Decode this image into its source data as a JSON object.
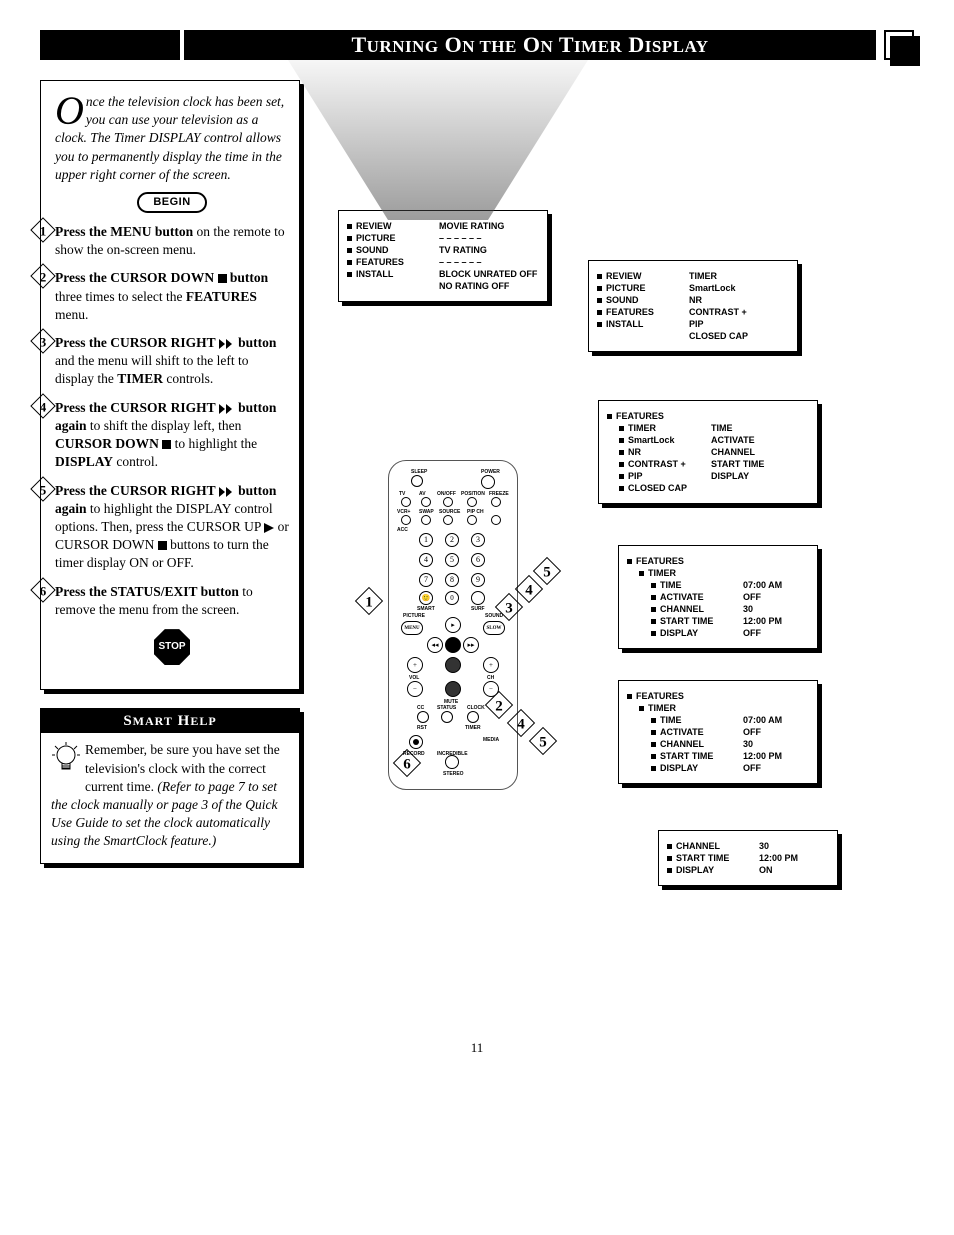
{
  "header_title": "TURNING ON THE ON TIMER DISPLAY",
  "intro_dropcap": "O",
  "intro_text": "nce the television clock has been set, you can use your television as a clock. The Timer DISPLAY control allows you to permanently display the time in the upper right corner of the screen.",
  "begin_label": "BEGIN",
  "steps": [
    {
      "n": "1",
      "html": "<b>Press the MENU button</b> on the remote to show the on-screen menu."
    },
    {
      "n": "2",
      "html": "<b>Press the CURSOR DOWN <span class='sq'></span> button</b> three times to select the <b>FEATURES</b> menu."
    },
    {
      "n": "3",
      "html": "<b>Press the CURSOR RIGHT <svg class='dir-icon' viewBox='0 0 16 10'><polygon points='0,0 6,5 0,10' fill='#000'/><polygon points='7,0 13,5 7,10' fill='#000'/></svg> button</b> and the menu will shift to the left to display the <b>TIMER</b> controls."
    },
    {
      "n": "4",
      "html": "<b>Press the CURSOR RIGHT <svg class='dir-icon' viewBox='0 0 16 10'><polygon points='0,0 6,5 0,10' fill='#000'/><polygon points='7,0 13,5 7,10' fill='#000'/></svg> button again</b> to shift the display left, then <b>CURSOR DOWN</b> <span class='sq'></span> to highlight the <b>DISPLAY</b> control."
    },
    {
      "n": "5",
      "html": "<b>Press the CURSOR RIGHT <svg class='dir-icon' viewBox='0 0 16 10'><polygon points='0,0 6,5 0,10' fill='#000'/><polygon points='7,0 13,5 7,10' fill='#000'/></svg> button again</b> to highlight the DISPLAY control options. Then, press the CURSOR UP <svg class='dir-icon' style='width:10px' viewBox='0 0 10 10'><polygon points='0,0 10,5 0,10' fill='#000'/></svg> or CURSOR DOWN <span class='sq'></span> buttons to turn the timer display ON or OFF."
    },
    {
      "n": "6",
      "html": "<b>Press the STATUS/EXIT button</b> to remove the menu from the screen."
    }
  ],
  "stop_label": "STOP",
  "smart_help_title": "SMART HELP",
  "smart_help_body": "Remember, be sure you have set the television's clock with the correct current time. <i>(Refer to page 7 to set the clock manually or page 3 of the Quick Use Guide to set the clock automatically using the SmartClock feature.)</i>",
  "osd1": {
    "left": [
      "REVIEW",
      "PICTURE",
      "SOUND",
      "FEATURES",
      "INSTALL"
    ],
    "right": [
      "MOVIE RATING",
      "– – – – – –",
      "TV RATING",
      "– – – – – –",
      "BLOCK UNRATED  OFF",
      "NO RATING        OFF"
    ]
  },
  "osd2": {
    "left": [
      "REVIEW",
      "PICTURE",
      "SOUND",
      "FEATURES",
      "INSTALL"
    ],
    "right": [
      "TIMER",
      "SmartLock",
      "NR",
      "CONTRAST +",
      "PIP",
      "CLOSED CAP"
    ]
  },
  "osd3": {
    "head": "FEATURES",
    "left": [
      "TIMER",
      "SmartLock",
      "NR",
      "CONTRAST +",
      "PIP",
      "CLOSED CAP"
    ],
    "right": [
      "TIME",
      "ACTIVATE",
      "CHANNEL",
      "START TIME",
      "DISPLAY",
      ""
    ]
  },
  "osd4": {
    "head": "FEATURES",
    "sub": "TIMER",
    "rows": [
      [
        "TIME",
        "07:00 AM"
      ],
      [
        "ACTIVATE",
        "OFF"
      ],
      [
        "CHANNEL",
        "30"
      ],
      [
        "START TIME",
        "12:00 PM"
      ],
      [
        "DISPLAY",
        "OFF"
      ]
    ]
  },
  "osd5": {
    "head": "FEATURES",
    "sub": "TIMER",
    "rows": [
      [
        "TIME",
        "07:00 AM"
      ],
      [
        "ACTIVATE",
        "OFF"
      ],
      [
        "CHANNEL",
        "30"
      ],
      [
        "START TIME",
        "12:00 PM"
      ],
      [
        "DISPLAY",
        "OFF"
      ]
    ]
  },
  "osd6": {
    "rows": [
      [
        "CHANNEL",
        "30"
      ],
      [
        "START TIME",
        "12:00 PM"
      ],
      [
        "DISPLAY",
        "ON"
      ]
    ]
  },
  "remote_labels": {
    "sleep": "SLEEP",
    "power": "POWER",
    "tv": "TV",
    "av": "AV",
    "onoff": "ON/OFF",
    "position": "POSITION",
    "freeze": "FREEZE",
    "vcr": "VCR+",
    "swap": "SWAP",
    "source": "SOURCE",
    "pipch": "PIP CH",
    "acc": "ACC",
    "smart": "SMART",
    "surf": "SURF",
    "picture": "PICTURE",
    "sound": "SOUND",
    "menu": "MENU",
    "slow": "SLOW",
    "vol": "VOL",
    "ch": "CH",
    "mute": "MUTE",
    "cc": "CC",
    "status": "STATUS",
    "clock": "CLOCK",
    "rst": "RST",
    "timer": "TIMER",
    "record": "RECORD",
    "incredible": "INCREDIBLE",
    "media": "MEDIA",
    "stereo": "STEREO"
  },
  "page_number": "11"
}
